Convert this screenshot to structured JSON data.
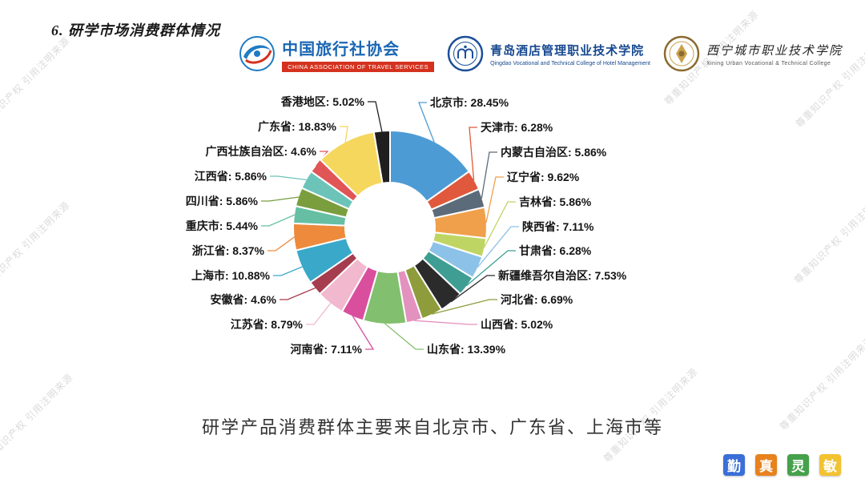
{
  "page": {
    "title": "6. 研学市场消费群体情况",
    "caption": "研学产品消费群体主要来自北京市、广东省、上海市等",
    "watermark": "尊重知识产权 引用注明来源"
  },
  "logos": [
    {
      "cn": "中国旅行社协会",
      "en": "CHINA ASSOCIATION OF TRAVEL SERVICES",
      "accent": "#1B67B3",
      "en_bg": "#D4321E",
      "icon": "travel-association-globe-icon"
    },
    {
      "cn": "青岛酒店管理职业技术学院",
      "en": "Qingdao Vocational and Technical College of Hotel Management",
      "accent": "#16488F",
      "icon": "qingdao-college-emblem-icon"
    },
    {
      "cn": "西宁城市职业技术学院",
      "en": "Xining Urban Vocational & Technical College",
      "accent": "#8A6B30",
      "icon": "xining-college-emblem-icon"
    }
  ],
  "chart_data": {
    "type": "pie",
    "subtype": "donut",
    "title": "",
    "unit": "%",
    "start_angle": -90,
    "direction": "clockwise",
    "inner_radius_ratio": 0.46,
    "legend": "none",
    "label_format": "{name}: {value}%",
    "slices": [
      {
        "label": "北京市",
        "value": 28.45,
        "color": "#4D9BD5"
      },
      {
        "label": "天津市",
        "value": 6.28,
        "color": "#E0593C"
      },
      {
        "label": "内蒙古自治区",
        "value": 5.86,
        "color": "#5B6B7A"
      },
      {
        "label": "辽宁省",
        "value": 9.62,
        "color": "#F0A04B"
      },
      {
        "label": "吉林省",
        "value": 5.86,
        "color": "#BFD563"
      },
      {
        "label": "陕西省",
        "value": 7.11,
        "color": "#8CC2E8"
      },
      {
        "label": "甘肃省",
        "value": 6.28,
        "color": "#3E9E94"
      },
      {
        "label": "新疆维吾尔自治区",
        "value": 7.53,
        "color": "#2B2B2B"
      },
      {
        "label": "河北省",
        "value": 6.69,
        "color": "#8E9C3B"
      },
      {
        "label": "山西省",
        "value": 5.02,
        "color": "#E391BE"
      },
      {
        "label": "山东省",
        "value": 13.39,
        "color": "#82BF6E"
      },
      {
        "label": "河南省",
        "value": 7.11,
        "color": "#D94F9E"
      },
      {
        "label": "江苏省",
        "value": 8.79,
        "color": "#F2B8CE"
      },
      {
        "label": "安徽省",
        "value": 4.6,
        "color": "#A63D4E"
      },
      {
        "label": "上海市",
        "value": 10.88,
        "color": "#3AA8C9"
      },
      {
        "label": "浙江省",
        "value": 8.37,
        "color": "#EE8A3C"
      },
      {
        "label": "重庆市",
        "value": 5.44,
        "color": "#66BFA3"
      },
      {
        "label": "四川省",
        "value": 5.86,
        "color": "#7A9E3E"
      },
      {
        "label": "江西省",
        "value": 5.86,
        "color": "#6CC4B9"
      },
      {
        "label": "广西壮族自治区",
        "value": 4.6,
        "color": "#E05656"
      },
      {
        "label": "广东省",
        "value": 18.83,
        "color": "#F5D75E"
      },
      {
        "label": "香港地区",
        "value": 5.02,
        "color": "#1F1F1F"
      }
    ]
  },
  "seals": [
    {
      "char": "勤",
      "color": "#3A6FD8"
    },
    {
      "char": "真",
      "color": "#E8821E"
    },
    {
      "char": "灵",
      "color": "#46A14B"
    },
    {
      "char": "敏",
      "color": "#F2C230"
    }
  ]
}
